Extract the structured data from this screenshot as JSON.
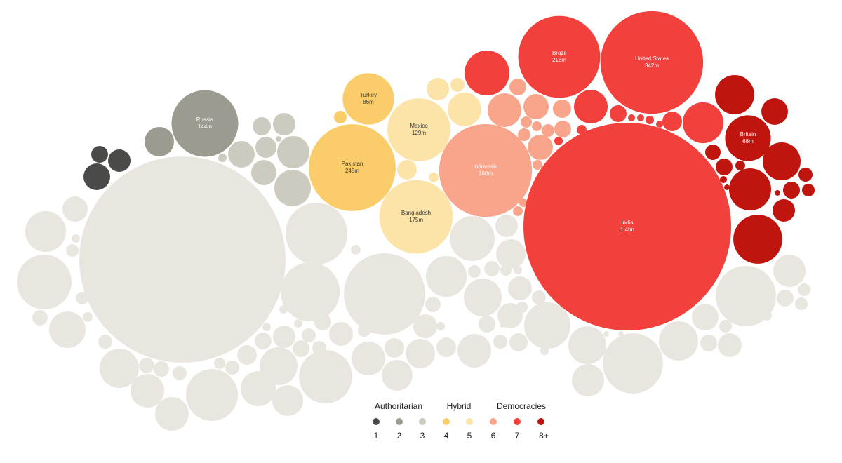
{
  "chart_data": {
    "type": "bubble",
    "legend_groups": [
      "Authoritarian",
      "Hybrid",
      "Democracies"
    ],
    "series": [
      {
        "name": "1",
        "color": "#4a4a48",
        "values": [
          9.2,
          16.4,
          23
        ]
      },
      {
        "name": "2",
        "color": "#9c9b8f",
        "values": [
          144,
          28.2
        ],
        "labels": [
          "Russia",
          null
        ],
        "value_labels": [
          "144m",
          null
        ]
      },
      {
        "name": "3",
        "color": "#cdcbbf",
        "values": [
          10.8,
          16.4,
          23,
          14.4,
          33.8,
          20.7,
          43.2,
          2.3,
          1
        ]
      },
      {
        "name": "4",
        "color": "#fbcd6a",
        "values": [
          86,
          245,
          5.2
        ],
        "labels": [
          "Turkey",
          "Pakistan",
          null
        ],
        "value_labels": [
          "86m",
          "245m",
          null
        ]
      },
      {
        "name": "5",
        "color": "#fce3a8",
        "values": [
          129,
          175,
          16.4,
          6.4,
          36.8,
          12.5,
          3.1
        ],
        "labels": [
          "Mexico",
          "Bangladesh",
          null,
          null,
          null,
          null,
          null
        ],
        "value_labels": [
          "129m",
          "175m",
          null,
          null,
          null,
          null,
          null
        ]
      },
      {
        "name": "6",
        "color": "#f9a58c",
        "values": [
          280,
          36.8,
          9.2,
          20.7,
          4.1,
          5.2,
          3.1,
          20.7,
          10.8,
          5.2,
          9.2,
          3.1,
          2.3,
          3.1
        ],
        "labels": [
          "Indonesia",
          null,
          null,
          null,
          null,
          null,
          null,
          null,
          null,
          null,
          null,
          null,
          null,
          null
        ],
        "value_labels": [
          "280m",
          null,
          null,
          null,
          null,
          null,
          null,
          null,
          null,
          null,
          null,
          null,
          null,
          null
        ]
      },
      {
        "name": "7",
        "color": "#f2403c",
        "values": [
          1400,
          342,
          218,
          65.5,
          36.8,
          9.2,
          12.5,
          54,
          3.1,
          2.3,
          1.6,
          1.6,
          2.3,
          1.6
        ],
        "labels": [
          "India",
          "United States",
          "Brazil",
          null,
          null,
          null,
          null,
          null,
          null,
          null,
          null,
          null,
          null,
          null
        ],
        "value_labels": [
          "1.4bn",
          "342m",
          "218m",
          null,
          null,
          null,
          null,
          null,
          null,
          null,
          null,
          null,
          null,
          null
        ]
      },
      {
        "name": "8+",
        "color": "#c0140f",
        "values": [
          68,
          50,
          23,
          7.7,
          9.2,
          3.1,
          1.6,
          46.6,
          57.5,
          78,
          16.4,
          6.4,
          5.2,
          9.2,
          1,
          1
        ],
        "labels": [
          "Britain",
          null,
          null,
          null,
          null,
          null,
          null,
          null,
          null,
          null,
          null,
          null,
          null,
          null,
          null,
          null
        ],
        "value_labels": [
          "68m",
          null,
          null,
          null,
          null,
          null,
          null,
          null,
          null,
          null,
          null,
          null,
          null,
          null,
          null,
          null
        ]
      }
    ],
    "others": {
      "color": "#e8e6df",
      "values": [
        1380,
        54,
        20.7,
        97,
        5.2,
        2.3,
        5.2,
        43.2,
        7.7,
        3.1,
        6.4,
        50,
        7.7,
        7.7,
        36.8,
        36.8,
        6.4,
        87.5,
        4.1,
        6.4,
        12.5,
        40,
        30.9,
        46.6,
        16.4,
        9.2,
        2.3,
        113,
        124,
        3.1,
        215,
        92,
        18.5,
        6.4,
        9.2,
        6.4,
        9.2,
        2.3,
        2.3,
        5.2,
        36.8,
        12.5,
        30.9,
        28.2,
        18.5,
        12.5,
        36.8,
        2.3,
        7.7,
        54,
        65.5,
        16.4,
        28.2,
        5.2,
        7.7,
        4.1,
        2.3,
        46.6,
        18.5,
        4.1,
        20.7,
        9.2,
        6.4,
        10.8,
        1,
        6.4,
        70,
        2.3,
        46.6,
        33.8,
        118,
        1,
        1,
        50,
        118,
        23,
        18.5,
        9.2,
        5.2,
        33.8,
        5.2,
        9.2,
        5.2,
        3.1
      ]
    }
  }
}
